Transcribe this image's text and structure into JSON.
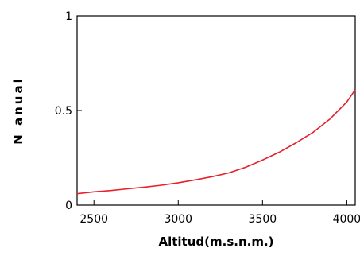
{
  "chart_data": {
    "type": "line",
    "xlabel": "Altitud(m.s.n.m.)",
    "ylabel": "N anual",
    "xlim": [
      2400,
      4050
    ],
    "ylim": [
      0,
      1
    ],
    "xticks": [
      2500,
      3000,
      3500,
      4000
    ],
    "yticks": [
      0,
      0.5,
      1
    ],
    "ytick_labels": [
      "0",
      "0.5",
      "1"
    ],
    "grid": false,
    "series": [
      {
        "color": "#e8202a",
        "x": [
          2400,
          2500,
          2600,
          2700,
          2800,
          2900,
          3000,
          3100,
          3200,
          3300,
          3400,
          3500,
          3600,
          3700,
          3800,
          3900,
          3950,
          4000,
          4050
        ],
        "y": [
          0.06,
          0.07,
          0.077,
          0.086,
          0.095,
          0.105,
          0.118,
          0.133,
          0.15,
          0.17,
          0.2,
          0.238,
          0.28,
          0.33,
          0.385,
          0.455,
          0.5,
          0.545,
          0.61
        ]
      }
    ]
  }
}
